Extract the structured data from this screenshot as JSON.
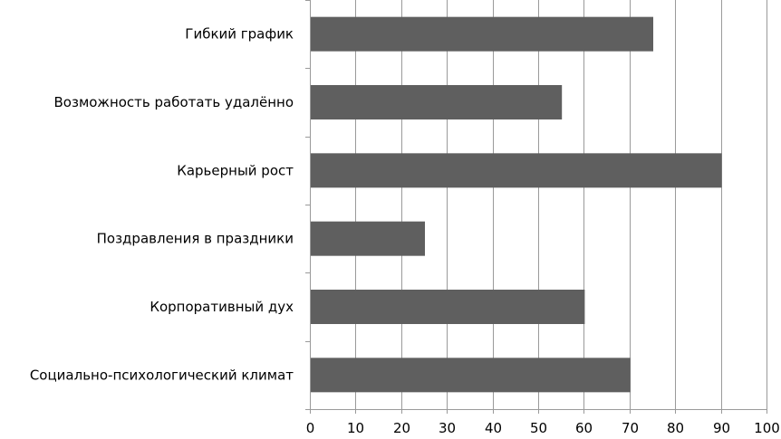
{
  "chart_data": {
    "type": "bar",
    "orientation": "horizontal",
    "categories": [
      "Гибкий график",
      "Возможность работать удалённо",
      "Карьерный рост",
      "Поздравления в праздники",
      "Корпоративный дух",
      "Социально-психологический климат"
    ],
    "values": [
      75,
      55,
      90,
      25,
      60,
      70
    ],
    "title": "",
    "xlabel": "",
    "ylabel": "",
    "xlim": [
      0,
      100
    ],
    "x_ticks": [
      "0",
      "10",
      "20",
      "30",
      "40",
      "50",
      "60",
      "70",
      "80",
      "90",
      "100"
    ],
    "grid": true,
    "legend": "none",
    "colors": {
      "bar": "#5f5f5f",
      "grid": "#9a9a9a"
    }
  }
}
